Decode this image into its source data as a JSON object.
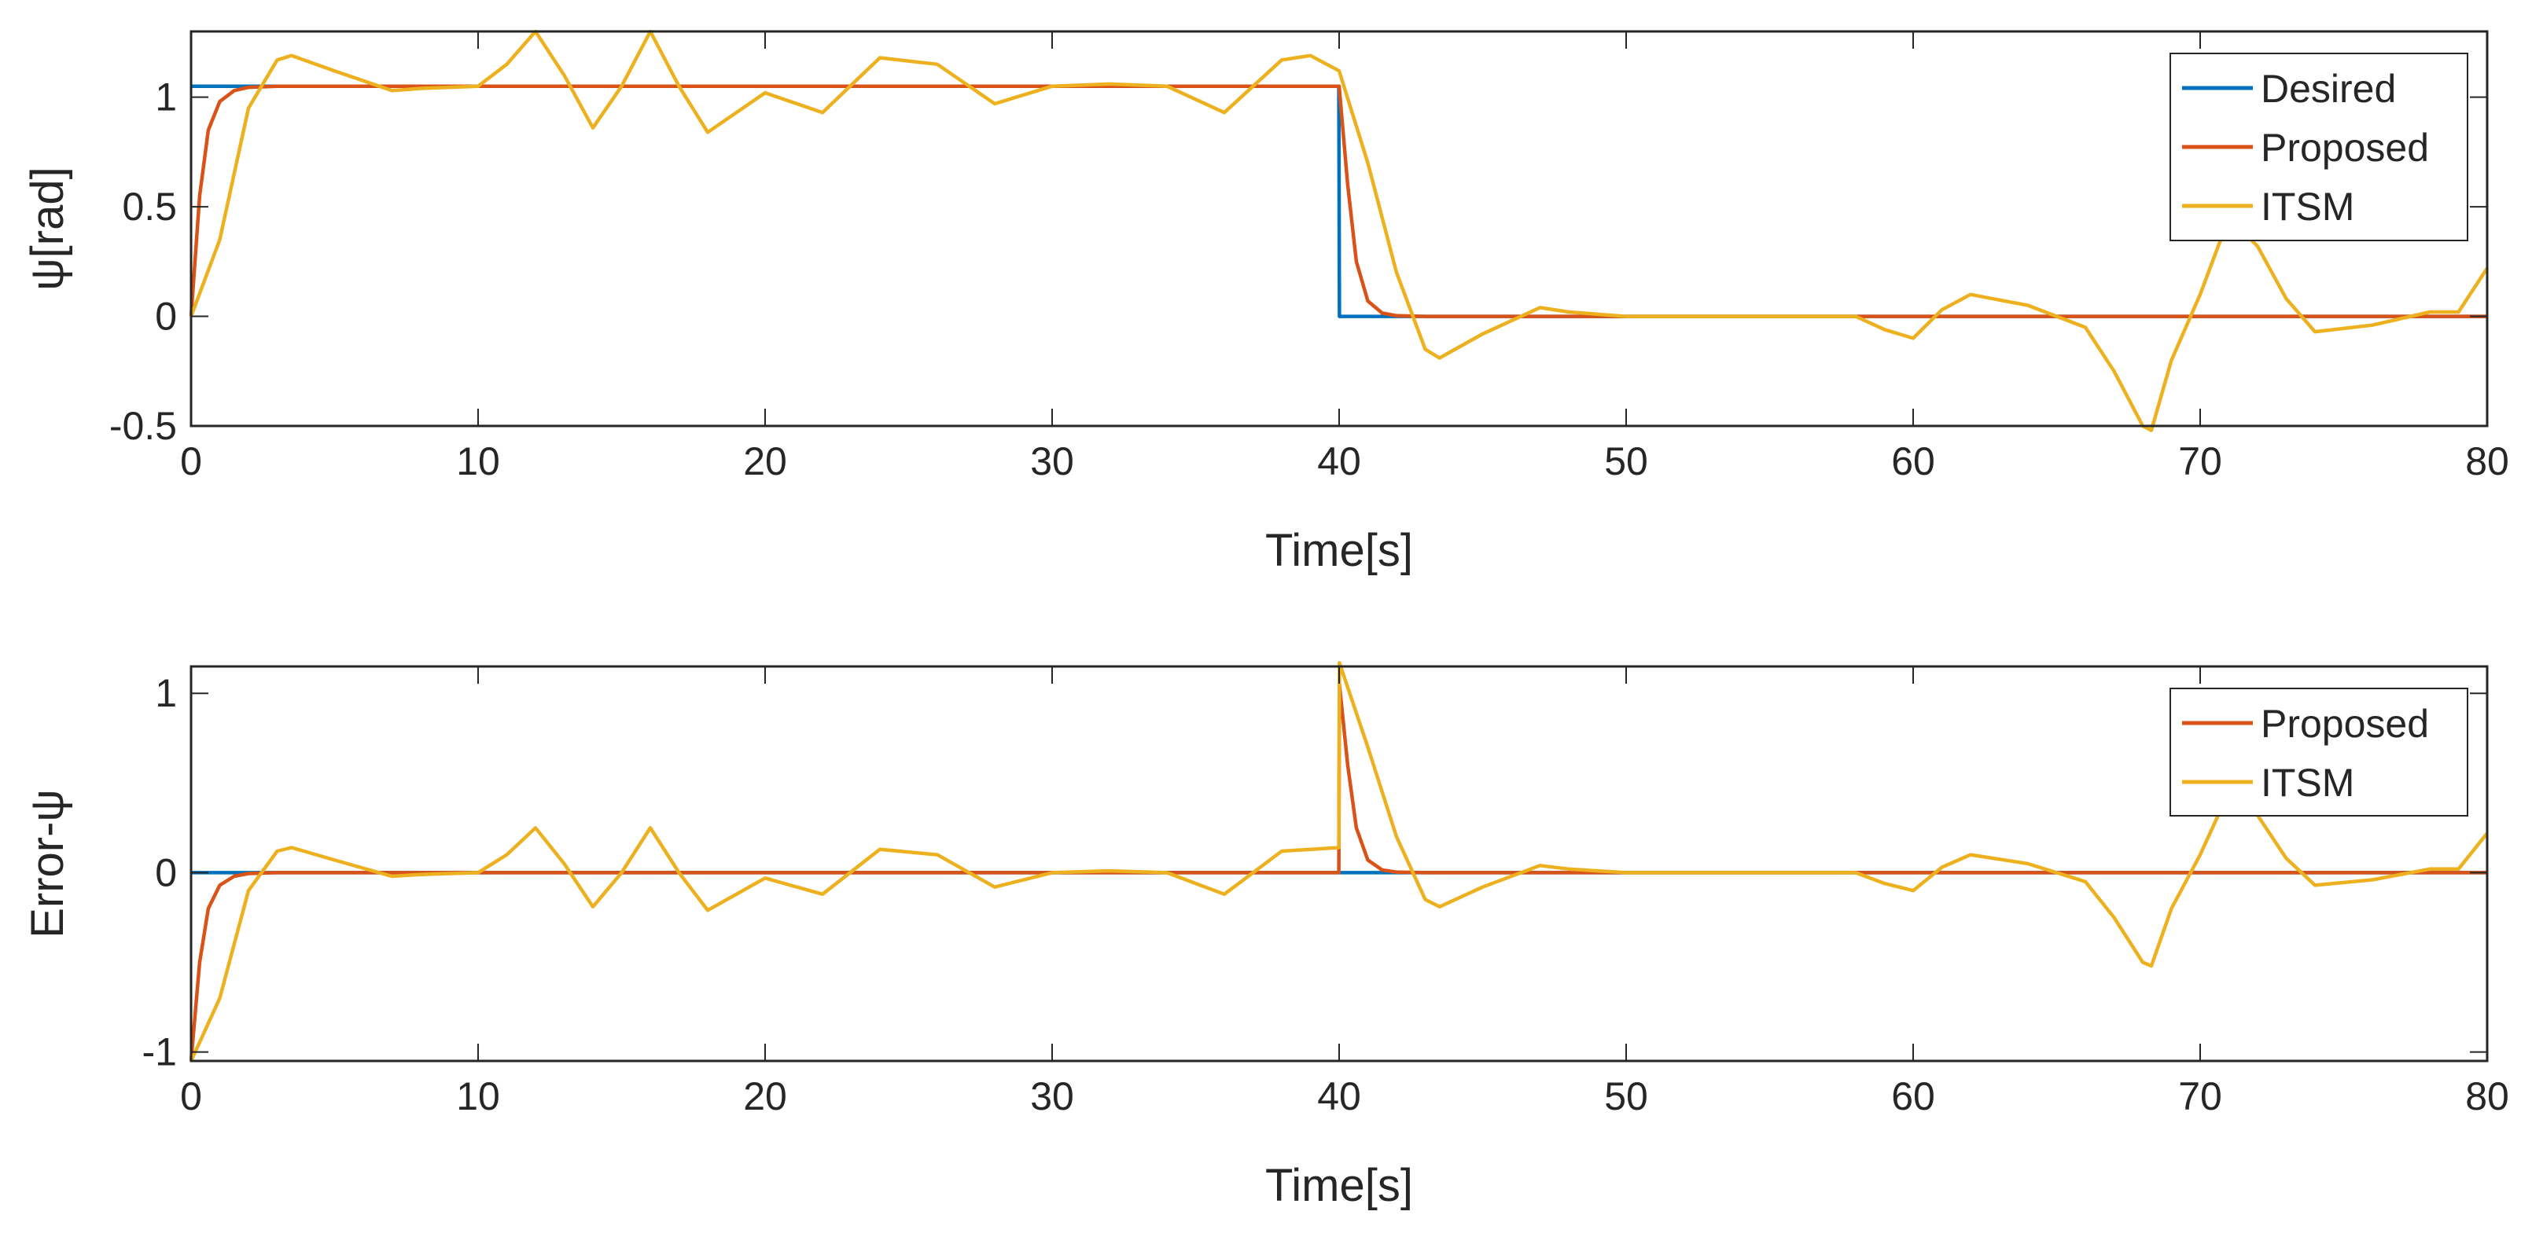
{
  "chart_data": [
    {
      "type": "line",
      "title": "",
      "xlabel": "Time[s]",
      "ylabel": "ψ[rad]",
      "xlim": [
        0,
        80
      ],
      "ylim": [
        -0.5,
        1.3
      ],
      "xticks": [
        "0",
        "10",
        "20",
        "30",
        "40",
        "50",
        "60",
        "70",
        "80"
      ],
      "yticks": [
        "-0.5",
        "0",
        "0.5",
        "1"
      ],
      "xtick_values": [
        0,
        10,
        20,
        30,
        40,
        50,
        60,
        70,
        80
      ],
      "ytick_values": [
        -0.5,
        0,
        0.5,
        1
      ],
      "grid": false,
      "legend": "top-right",
      "series": [
        {
          "name": "Desired",
          "color": "#0072BD",
          "x": [
            0,
            39.99,
            40.01,
            80
          ],
          "y": [
            1.05,
            1.05,
            0,
            0
          ]
        },
        {
          "name": "Proposed",
          "color": "#D95319",
          "x": [
            0,
            0.3,
            0.6,
            1,
            1.5,
            2,
            3,
            40,
            40.3,
            40.6,
            41,
            41.5,
            42,
            43,
            80
          ],
          "y": [
            0,
            0.55,
            0.85,
            0.98,
            1.03,
            1.045,
            1.05,
            1.05,
            0.6,
            0.25,
            0.07,
            0.015,
            0.003,
            0,
            0
          ]
        },
        {
          "name": "ITSM",
          "color": "#EDB120",
          "x": [
            0,
            1,
            2,
            3,
            3.5,
            5,
            7,
            8,
            10,
            11,
            12,
            13,
            14,
            15,
            16,
            17,
            18,
            20,
            22,
            24,
            26,
            28,
            30,
            32,
            34,
            36,
            38,
            39,
            40,
            41,
            42,
            43,
            43.5,
            45,
            47,
            48,
            50,
            55,
            58,
            59,
            60,
            61,
            62,
            64,
            66,
            67,
            68,
            68.3,
            69,
            70,
            71,
            72,
            73,
            74,
            76,
            78,
            79,
            80
          ],
          "y": [
            0,
            0.35,
            0.95,
            1.17,
            1.19,
            1.12,
            1.03,
            1.04,
            1.05,
            1.15,
            1.3,
            1.1,
            0.86,
            1.05,
            1.3,
            1.05,
            0.84,
            1.02,
            0.93,
            1.18,
            1.15,
            0.97,
            1.05,
            1.06,
            1.05,
            0.93,
            1.17,
            1.19,
            1.12,
            0.7,
            0.2,
            -0.15,
            -0.19,
            -0.08,
            0.04,
            0.02,
            0,
            0,
            0,
            -0.06,
            -0.1,
            0.03,
            0.1,
            0.05,
            -0.05,
            -0.25,
            -0.5,
            -0.52,
            -0.2,
            0.1,
            0.45,
            0.32,
            0.08,
            -0.07,
            -0.04,
            0.02,
            0.02,
            0.22
          ]
        }
      ]
    },
    {
      "type": "line",
      "title": "",
      "xlabel": "Time[s]",
      "ylabel": "Error-ψ",
      "xlim": [
        0,
        80
      ],
      "ylim": [
        -1.05,
        1.15
      ],
      "xticks": [
        "0",
        "10",
        "20",
        "30",
        "40",
        "50",
        "60",
        "70",
        "80"
      ],
      "yticks": [
        "-1",
        "0",
        "1"
      ],
      "xtick_values": [
        0,
        10,
        20,
        30,
        40,
        50,
        60,
        70,
        80
      ],
      "ytick_values": [
        -1,
        0,
        1
      ],
      "grid": false,
      "legend": "top-right",
      "series": [
        {
          "color": "#0072BD",
          "x": [
            0,
            80
          ],
          "y": [
            0,
            0
          ]
        },
        {
          "name": "Proposed",
          "color": "#D95319",
          "x": [
            0,
            0.3,
            0.6,
            1,
            1.5,
            2,
            3,
            39.99,
            40.01,
            40.3,
            40.6,
            41,
            41.5,
            42,
            43,
            80
          ],
          "y": [
            -1.05,
            -0.5,
            -0.2,
            -0.07,
            -0.02,
            -0.005,
            0,
            0,
            1.05,
            0.6,
            0.25,
            0.07,
            0.015,
            0.003,
            0,
            0
          ]
        },
        {
          "name": "ITSM",
          "color": "#EDB120",
          "x": [
            0,
            1,
            2,
            3,
            3.5,
            5,
            7,
            8,
            10,
            11,
            12,
            13,
            14,
            15,
            16,
            17,
            18,
            20,
            22,
            24,
            26,
            28,
            30,
            32,
            34,
            36,
            38,
            39.99,
            40.01,
            41,
            42,
            43,
            43.5,
            45,
            47,
            48,
            50,
            55,
            58,
            59,
            60,
            61,
            62,
            64,
            66,
            67,
            68,
            68.3,
            69,
            70,
            71,
            72,
            73,
            74,
            76,
            78,
            79,
            80
          ],
          "y": [
            -1.05,
            -0.7,
            -0.1,
            0.12,
            0.14,
            0.07,
            -0.02,
            -0.01,
            0,
            0.1,
            0.25,
            0.05,
            -0.19,
            0,
            0.25,
            0,
            -0.21,
            -0.03,
            -0.12,
            0.13,
            0.1,
            -0.08,
            0,
            0.01,
            0,
            -0.12,
            0.12,
            0.14,
            1.17,
            0.7,
            0.2,
            -0.15,
            -0.19,
            -0.08,
            0.04,
            0.02,
            0,
            0,
            0,
            -0.06,
            -0.1,
            0.03,
            0.1,
            0.05,
            -0.05,
            -0.25,
            -0.5,
            -0.52,
            -0.2,
            0.1,
            0.45,
            0.32,
            0.08,
            -0.07,
            -0.04,
            0.02,
            0.02,
            0.22
          ]
        }
      ]
    }
  ]
}
